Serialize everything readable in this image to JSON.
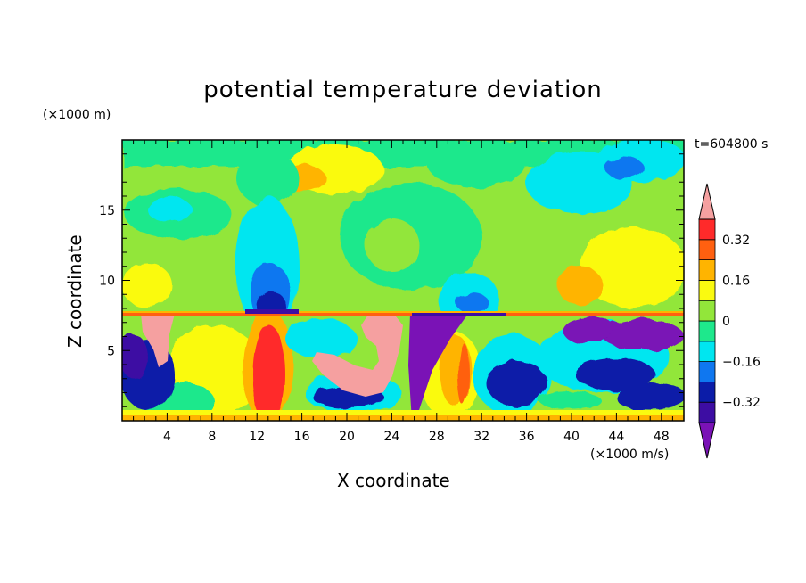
{
  "chart_data": {
    "type": "heatmap",
    "title": "potential temperature deviation",
    "time_label": "t=604800 s",
    "xlabel": "X coordinate",
    "ylabel": "Z coordinate",
    "x_unit": "(×1000 m/s)",
    "z_unit": "(×1000 m)",
    "xlim": [
      0,
      50
    ],
    "ylim": [
      0,
      20
    ],
    "x_ticks": [
      "4",
      "8",
      "12",
      "16",
      "20",
      "24",
      "28",
      "32",
      "36",
      "40",
      "44",
      "48"
    ],
    "y_ticks": [
      "5",
      "10",
      "15"
    ],
    "colorbar": {
      "tick_labels": [
        "0.32",
        "0.16",
        "0",
        "−0.16",
        "−0.32"
      ],
      "levels": [
        -0.4,
        -0.32,
        -0.24,
        -0.16,
        -0.08,
        0,
        0.08,
        0.16,
        0.24,
        0.32,
        0.4
      ],
      "colors": [
        "#7a12b6",
        "#3d0da3",
        "#0b1ca8",
        "#0f77f0",
        "#00e6f0",
        "#1ee88c",
        "#92e63a",
        "#fafa10",
        "#ffb400",
        "#ff6010",
        "#ff2a2a",
        "#f5a0a0"
      ],
      "extend": "both"
    }
  }
}
